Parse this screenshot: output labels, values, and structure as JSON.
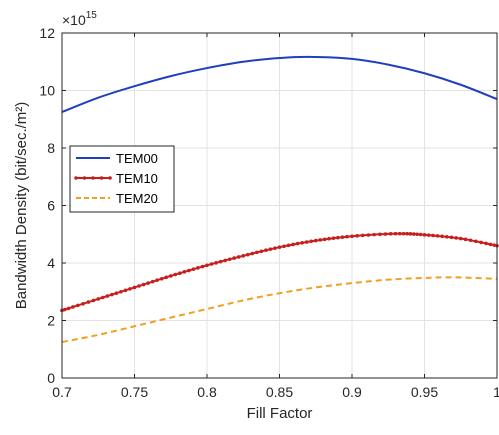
{
  "chart_data": {
    "type": "line",
    "xlabel": "Fill Factor",
    "ylabel": "Bandwidth Density (bit/sec./m²)",
    "y_exponent_label": "×10",
    "y_exponent_power": "15",
    "xlim": [
      0.7,
      1.0
    ],
    "ylim": [
      0,
      12
    ],
    "xticks": [
      0.7,
      0.75,
      0.8,
      0.85,
      0.9,
      0.95,
      1.0
    ],
    "xtick_labels": [
      "0.7",
      "0.75",
      "0.8",
      "0.85",
      "0.9",
      "0.95",
      "1"
    ],
    "yticks": [
      0,
      2,
      4,
      6,
      8,
      10,
      12
    ],
    "ytick_labels": [
      "0",
      "2",
      "4",
      "6",
      "8",
      "10",
      "12"
    ],
    "grid": true,
    "legend_position": "middle-left",
    "series": [
      {
        "name": "TEM00",
        "color": "#1f3fbf",
        "style": "solid",
        "x": [
          0.7,
          0.725,
          0.75,
          0.775,
          0.8,
          0.825,
          0.85,
          0.87,
          0.9,
          0.925,
          0.95,
          0.975,
          1.0
        ],
        "y": [
          9.25,
          9.75,
          10.15,
          10.5,
          10.78,
          11.0,
          11.13,
          11.17,
          11.1,
          10.9,
          10.6,
          10.2,
          9.7
        ]
      },
      {
        "name": "TEM10",
        "color": "#c81e1e",
        "style": "solid-dots",
        "x": [
          0.7,
          0.725,
          0.75,
          0.775,
          0.8,
          0.825,
          0.85,
          0.875,
          0.9,
          0.93,
          0.95,
          0.975,
          1.0
        ],
        "y": [
          2.35,
          2.75,
          3.15,
          3.55,
          3.92,
          4.25,
          4.55,
          4.78,
          4.93,
          5.02,
          4.98,
          4.85,
          4.6
        ]
      },
      {
        "name": "TEM20",
        "color": "#f0a020",
        "style": "dashed",
        "x": [
          0.7,
          0.725,
          0.75,
          0.775,
          0.8,
          0.825,
          0.85,
          0.875,
          0.9,
          0.925,
          0.95,
          0.97,
          1.0
        ],
        "y": [
          1.25,
          1.5,
          1.8,
          2.1,
          2.4,
          2.7,
          2.95,
          3.15,
          3.3,
          3.42,
          3.48,
          3.5,
          3.45
        ]
      }
    ]
  }
}
